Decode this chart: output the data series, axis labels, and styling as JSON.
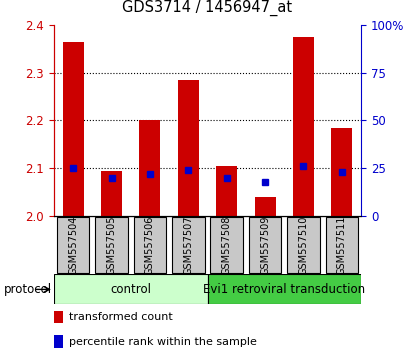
{
  "title": "GDS3714 / 1456947_at",
  "samples": [
    "GSM557504",
    "GSM557505",
    "GSM557506",
    "GSM557507",
    "GSM557508",
    "GSM557509",
    "GSM557510",
    "GSM557511"
  ],
  "transformed_counts": [
    2.365,
    2.095,
    2.2,
    2.285,
    2.105,
    2.04,
    2.375,
    2.185
  ],
  "percentile_ranks": [
    25,
    20,
    22,
    24,
    20,
    18,
    26,
    23
  ],
  "ylim_left": [
    2.0,
    2.4
  ],
  "ylim_right": [
    0,
    100
  ],
  "yticks_left": [
    2.0,
    2.1,
    2.2,
    2.3,
    2.4
  ],
  "yticks_right": [
    0,
    25,
    50,
    75,
    100
  ],
  "ytick_labels_right": [
    "0",
    "25",
    "50",
    "75",
    "100%"
  ],
  "bar_color": "#cc0000",
  "dot_color": "#0000cc",
  "control_group": [
    0,
    1,
    2,
    3
  ],
  "transduction_group": [
    4,
    5,
    6,
    7
  ],
  "control_label": "control",
  "transduction_label": "Evi1 retroviral transduction",
  "control_bg": "#ccffcc",
  "transduction_bg": "#44cc44",
  "protocol_label": "protocol",
  "legend_red": "transformed count",
  "legend_blue": "percentile rank within the sample",
  "bar_width": 0.55,
  "base_value": 2.0,
  "left_axis_color": "#cc0000",
  "right_axis_color": "#0000cc",
  "figsize": [
    4.15,
    3.54
  ],
  "dpi": 100,
  "sample_box_color": "#c8c8c8",
  "gridline_levels": [
    2.1,
    2.2,
    2.3
  ]
}
